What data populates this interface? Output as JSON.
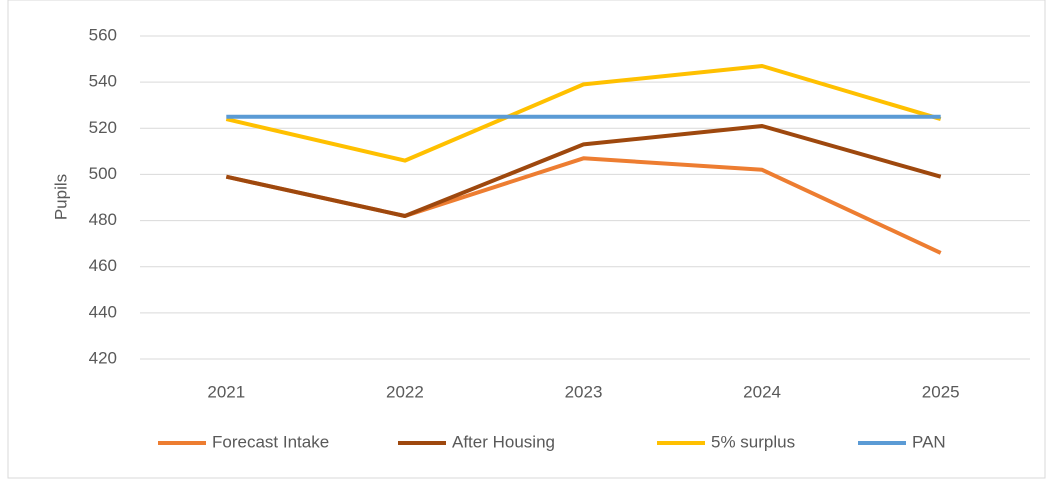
{
  "chart_data": {
    "type": "line",
    "y_label": "Pupils",
    "categories": [
      "2021",
      "2022",
      "2023",
      "2024",
      "2025"
    ],
    "series": [
      {
        "name": "Forecast Intake",
        "color": "#ed7d31",
        "values": [
          499,
          482,
          507,
          502,
          466
        ]
      },
      {
        "name": "After Housing",
        "color": "#9e480e",
        "values": [
          499,
          482,
          513,
          521,
          499
        ]
      },
      {
        "name": "5% surplus",
        "color": "#ffc000",
        "values": [
          524,
          506,
          539,
          547,
          524
        ]
      },
      {
        "name": "PAN",
        "color": "#5b9bd5",
        "values": [
          525,
          525,
          525,
          525,
          525
        ]
      }
    ],
    "ylim": [
      420,
      560
    ],
    "yticks": [
      420,
      440,
      460,
      480,
      500,
      520,
      540,
      560
    ],
    "grid": true,
    "legend": "bottom"
  }
}
